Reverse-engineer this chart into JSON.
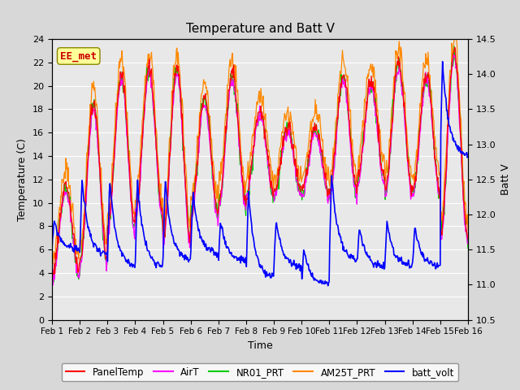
{
  "title": "Temperature and Batt V",
  "xlabel": "Time",
  "ylabel_left": "Temperature (C)",
  "ylabel_right": "Batt V",
  "ylim_left": [
    0,
    24
  ],
  "ylim_right": [
    10.5,
    14.5
  ],
  "yticks_left": [
    0,
    2,
    4,
    6,
    8,
    10,
    12,
    14,
    16,
    18,
    20,
    22,
    24
  ],
  "yticks_right": [
    10.5,
    11.0,
    11.5,
    12.0,
    12.5,
    13.0,
    13.5,
    14.0,
    14.5
  ],
  "xtick_labels": [
    "Feb 1",
    "Feb 2",
    "Feb 3",
    "Feb 4",
    "Feb 5",
    "Feb 6",
    "Feb 7",
    "Feb 8",
    "Feb 9",
    "Feb 10",
    "Feb 11",
    "Feb 12",
    "Feb 13",
    "Feb 14",
    "Feb 15",
    "Feb 16"
  ],
  "bg_color": "#d8d8d8",
  "plot_bg_color": "#e8e8e8",
  "grid_color": "#ffffff",
  "annotation_text": "EE_met",
  "annotation_color": "#cc0000",
  "annotation_bg": "#ffff99",
  "legend_entries": [
    "PanelTemp",
    "AirT",
    "NR01_PRT",
    "AM25T_PRT",
    "batt_volt"
  ],
  "legend_colors": [
    "#ff0000",
    "#ff00ff",
    "#00cc00",
    "#ff8800",
    "#0000ff"
  ],
  "line_colors": {
    "PanelTemp": "#ff0000",
    "AirT": "#ff00ff",
    "NR01_PRT": "#00cc00",
    "AM25T_PRT": "#ff8800",
    "batt_volt": "#0000ff"
  }
}
